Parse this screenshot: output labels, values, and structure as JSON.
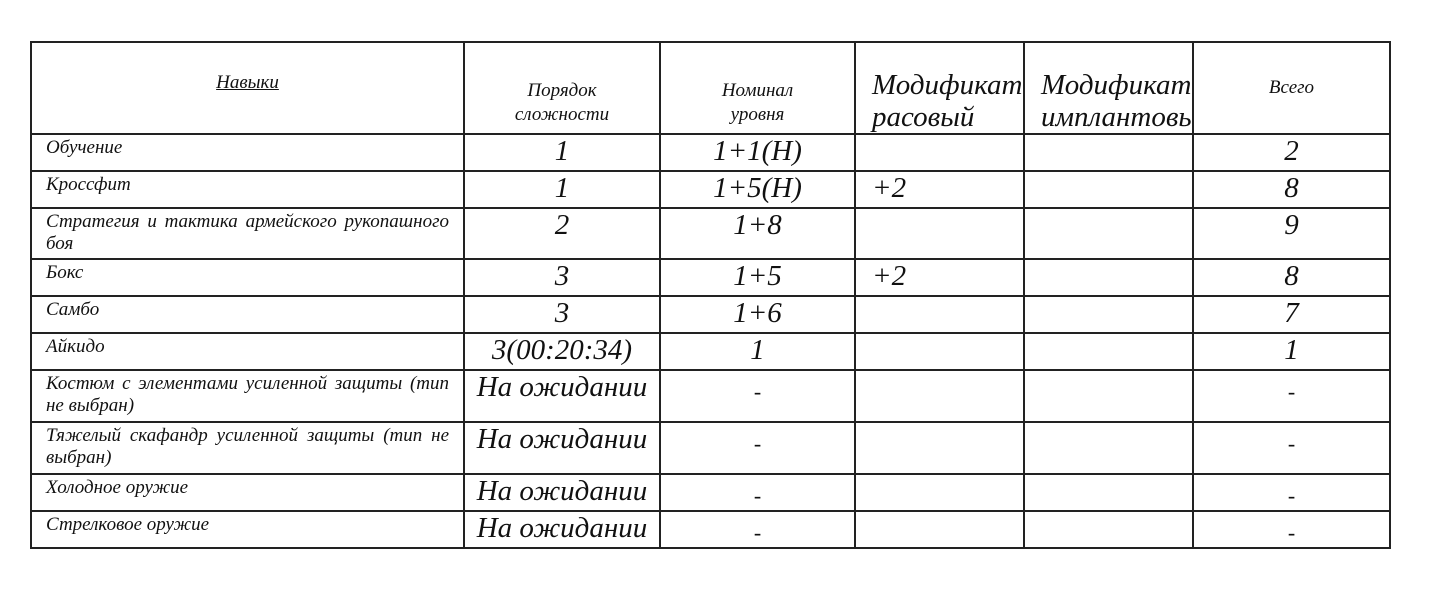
{
  "headers": [
    "Навыки",
    "Порядок сложности",
    "Номинал уровня",
    "Модификатор расовый",
    "Модификатор имплантовый",
    "Всего"
  ],
  "rows": [
    {
      "skill": "Обучение",
      "order": "1",
      "nominal": "1+1(Н)",
      "race": "",
      "implant": "",
      "total": "2"
    },
    {
      "skill": "Кроссфит",
      "order": "1",
      "nominal": "1+5(Н)",
      "race": "+2",
      "implant": "",
      "total": "8"
    },
    {
      "skill": "Стратегия и тактика армейского рукопашного боя",
      "order": "2",
      "nominal": "1+8",
      "race": "",
      "implant": "",
      "total": "9"
    },
    {
      "skill": "Бокс",
      "order": "3",
      "nominal": "1+5",
      "race": "+2",
      "implant": "",
      "total": "8"
    },
    {
      "skill": "Самбо",
      "order": "3",
      "nominal": "1+6",
      "race": "",
      "implant": "",
      "total": "7"
    },
    {
      "skill": "Айкидо",
      "order": "3(00:20:34)",
      "nominal": "1",
      "race": "",
      "implant": "",
      "total": "1"
    },
    {
      "skill": "Костюм с элементами усиленной защиты (тип не выбран)",
      "order": "На ожидании",
      "nominal": "-",
      "race": "",
      "implant": "",
      "total": "-"
    },
    {
      "skill": "Тяжелый скафандр усиленной защиты (тип не выбран)",
      "order": "На ожидании",
      "nominal": "-",
      "race": "",
      "implant": "",
      "total": "-"
    },
    {
      "skill": "Холодное оружие",
      "order": "На ожидании",
      "nominal": "-",
      "race": "",
      "implant": "",
      "total": "-"
    },
    {
      "skill": "Стрелковое оружие",
      "order": "На ожидании",
      "nominal": "-",
      "race": "",
      "implant": "",
      "total": "-"
    }
  ]
}
